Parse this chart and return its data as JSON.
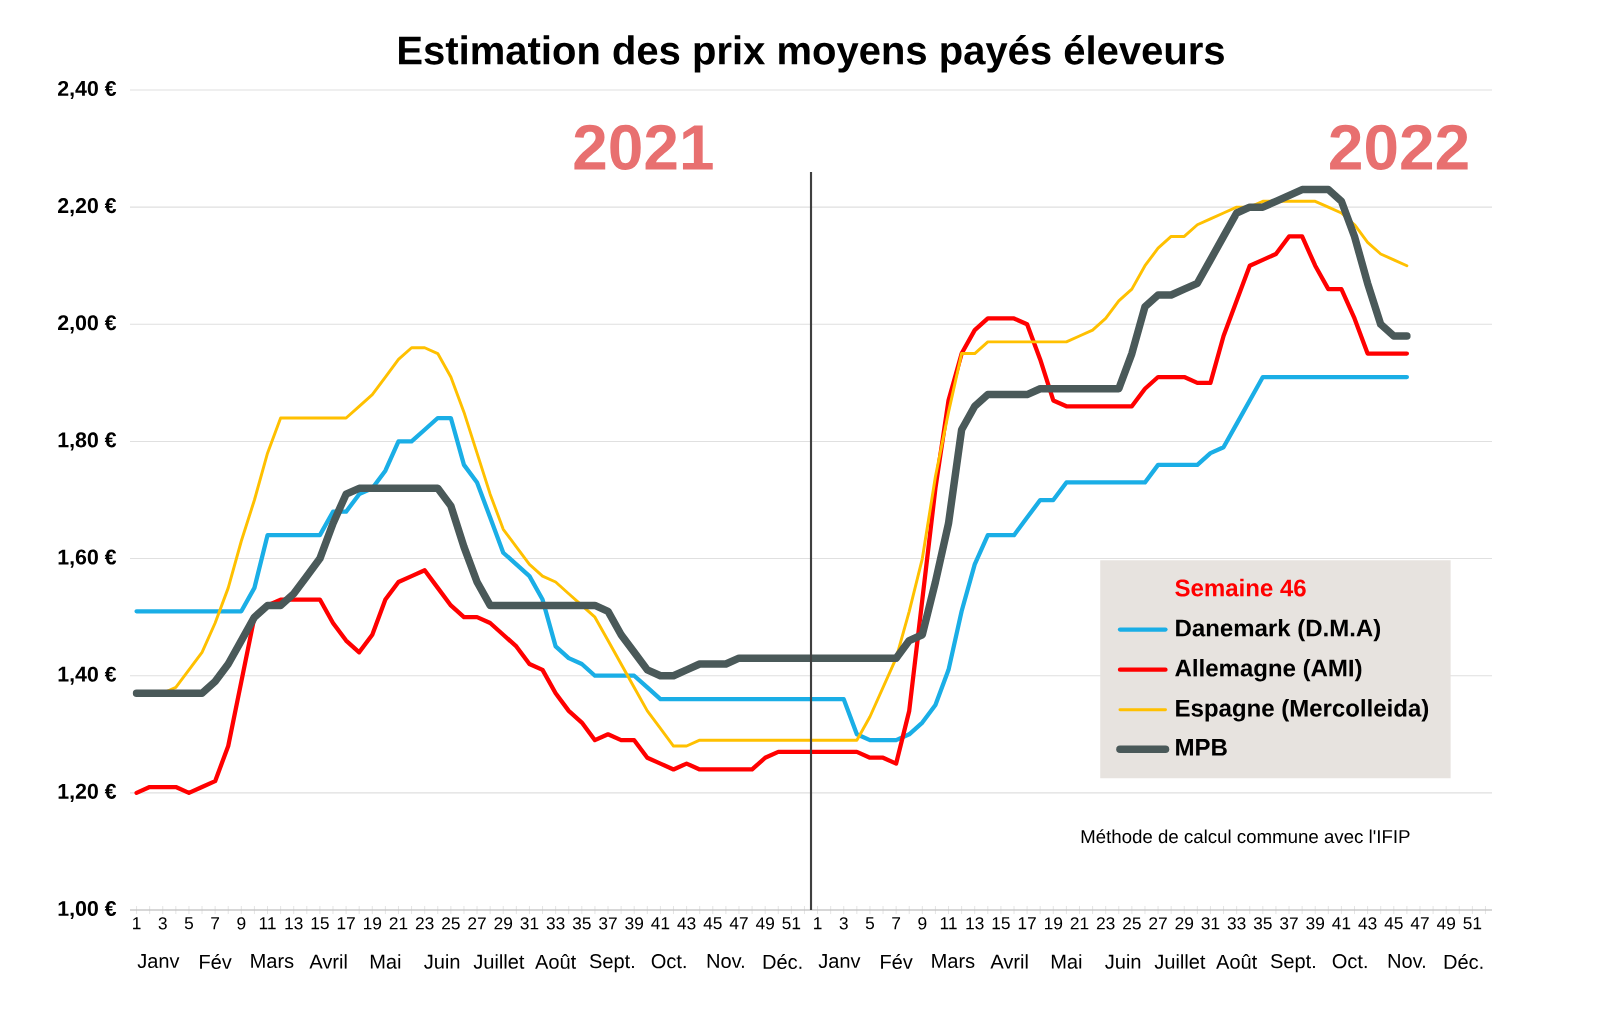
{
  "chart_data": {
    "type": "line",
    "title": "Estimation des prix moyens payés éleveurs",
    "categories": [
      "1",
      null,
      "3",
      null,
      "5",
      null,
      "7",
      null,
      "9",
      null,
      "11",
      null,
      "13",
      null,
      "15",
      null,
      "17",
      null,
      "19",
      null,
      "21",
      null,
      "23",
      null,
      "25",
      null,
      "27",
      null,
      "29",
      null,
      "31",
      null,
      "33",
      null,
      "35",
      null,
      "37",
      null,
      "39",
      null,
      "41",
      null,
      "43",
      null,
      "45",
      null,
      "47",
      null,
      "49",
      null,
      "51",
      null,
      "1",
      null,
      "3",
      null,
      "5",
      null,
      "7",
      null,
      "9",
      null,
      "11",
      null,
      "13",
      null,
      "15",
      null,
      "17",
      null,
      "19",
      null,
      "21",
      null,
      "23",
      null,
      "25",
      null,
      "27",
      null,
      "29",
      null,
      "31",
      null,
      "33",
      null,
      "35",
      null,
      "37",
      null,
      "39",
      null,
      "41",
      null,
      "43",
      null,
      "45",
      null,
      "47",
      null,
      "49",
      null,
      "51",
      null
    ],
    "series": [
      {
        "name": "Danemark (D.M.A)",
        "color": "#1aaee6",
        "values": [
          1.51,
          1.51,
          1.51,
          1.51,
          1.51,
          1.51,
          1.51,
          1.51,
          1.51,
          1.55,
          1.64,
          1.64,
          1.64,
          1.64,
          1.64,
          1.68,
          1.68,
          1.71,
          1.72,
          1.75,
          1.8,
          1.8,
          1.82,
          1.84,
          1.84,
          1.76,
          1.73,
          1.67,
          1.61,
          1.59,
          1.57,
          1.53,
          1.45,
          1.43,
          1.42,
          1.4,
          1.4,
          1.4,
          1.4,
          1.38,
          1.36,
          1.36,
          1.36,
          1.36,
          1.36,
          1.36,
          1.36,
          1.36,
          1.36,
          1.36,
          1.36,
          1.36,
          1.36,
          1.36,
          1.36,
          1.3,
          1.29,
          1.29,
          1.29,
          1.3,
          1.32,
          1.35,
          1.41,
          1.51,
          1.59,
          1.64,
          1.64,
          1.64,
          1.67,
          1.7,
          1.7,
          1.73,
          1.73,
          1.73,
          1.73,
          1.73,
          1.73,
          1.73,
          1.76,
          1.76,
          1.76,
          1.76,
          1.78,
          1.79,
          1.83,
          1.87,
          1.91,
          1.91,
          1.91,
          1.91,
          1.91,
          1.91,
          1.91,
          1.91,
          1.91,
          1.91,
          1.91,
          1.91,
          null,
          null,
          null,
          null,
          null,
          null
        ]
      },
      {
        "name": "Allemagne (AMI)",
        "color": "#ff0000",
        "values": [
          1.2,
          1.21,
          1.21,
          1.21,
          1.2,
          1.21,
          1.22,
          1.28,
          1.39,
          1.5,
          1.52,
          1.53,
          1.53,
          1.53,
          1.53,
          1.49,
          1.46,
          1.44,
          1.47,
          1.53,
          1.56,
          1.57,
          1.58,
          1.55,
          1.52,
          1.5,
          1.5,
          1.49,
          1.47,
          1.45,
          1.42,
          1.41,
          1.37,
          1.34,
          1.32,
          1.29,
          1.3,
          1.29,
          1.29,
          1.26,
          1.25,
          1.24,
          1.25,
          1.24,
          1.24,
          1.24,
          1.24,
          1.24,
          1.26,
          1.27,
          1.27,
          1.27,
          1.27,
          1.27,
          1.27,
          1.27,
          1.26,
          1.26,
          1.25,
          1.34,
          1.53,
          1.72,
          1.87,
          1.95,
          1.99,
          2.01,
          2.01,
          2.01,
          2.0,
          1.94,
          1.87,
          1.86,
          1.86,
          1.86,
          1.86,
          1.86,
          1.86,
          1.89,
          1.91,
          1.91,
          1.91,
          1.9,
          1.9,
          1.98,
          2.04,
          2.1,
          2.11,
          2.12,
          2.15,
          2.15,
          2.1,
          2.06,
          2.06,
          2.01,
          1.95,
          1.95,
          1.95,
          1.95,
          null,
          null,
          null,
          null,
          null,
          null
        ]
      },
      {
        "name": "Espagne (Mercolleida)",
        "color": "#ffc000",
        "values": [
          null,
          null,
          1.37,
          1.38,
          1.41,
          1.44,
          1.49,
          1.55,
          1.63,
          1.7,
          1.78,
          1.84,
          1.84,
          1.84,
          1.84,
          1.84,
          1.84,
          1.86,
          1.88,
          1.91,
          1.94,
          1.96,
          1.96,
          1.95,
          1.91,
          1.85,
          1.78,
          1.71,
          1.65,
          1.62,
          1.59,
          1.57,
          1.56,
          1.54,
          1.52,
          1.5,
          1.46,
          1.42,
          1.38,
          1.34,
          1.31,
          1.28,
          1.28,
          1.29,
          1.29,
          1.29,
          1.29,
          1.29,
          1.29,
          1.29,
          1.29,
          1.29,
          1.29,
          1.29,
          1.29,
          1.29,
          1.33,
          1.38,
          1.43,
          1.51,
          1.6,
          1.74,
          1.85,
          1.95,
          1.95,
          1.97,
          1.97,
          1.97,
          1.97,
          1.97,
          1.97,
          1.97,
          1.98,
          1.99,
          2.01,
          2.04,
          2.06,
          2.1,
          2.13,
          2.15,
          2.15,
          2.17,
          2.18,
          2.19,
          2.2,
          2.2,
          2.21,
          2.21,
          2.21,
          2.21,
          2.21,
          2.2,
          2.19,
          2.17,
          2.14,
          2.12,
          2.11,
          2.1,
          null,
          null,
          null,
          null,
          null,
          null
        ]
      },
      {
        "name": "MPB",
        "color": "#4a5959",
        "values": [
          1.37,
          1.37,
          1.37,
          1.37,
          1.37,
          1.37,
          1.39,
          1.42,
          1.46,
          1.5,
          1.52,
          1.52,
          1.54,
          1.57,
          1.6,
          1.66,
          1.71,
          1.72,
          1.72,
          1.72,
          1.72,
          1.72,
          1.72,
          1.72,
          1.69,
          1.62,
          1.56,
          1.52,
          1.52,
          1.52,
          1.52,
          1.52,
          1.52,
          1.52,
          1.52,
          1.52,
          1.51,
          1.47,
          1.44,
          1.41,
          1.4,
          1.4,
          1.41,
          1.42,
          1.42,
          1.42,
          1.43,
          1.43,
          1.43,
          1.43,
          1.43,
          1.43,
          1.43,
          1.43,
          1.43,
          1.43,
          1.43,
          1.43,
          1.43,
          1.46,
          1.47,
          1.56,
          1.66,
          1.82,
          1.86,
          1.88,
          1.88,
          1.88,
          1.88,
          1.89,
          1.89,
          1.89,
          1.89,
          1.89,
          1.89,
          1.89,
          1.95,
          2.03,
          2.05,
          2.05,
          2.06,
          2.07,
          2.11,
          2.15,
          2.19,
          2.2,
          2.2,
          2.21,
          2.22,
          2.23,
          2.23,
          2.23,
          2.21,
          2.15,
          2.07,
          2.0,
          1.98,
          1.98,
          null,
          null,
          null,
          null,
          null,
          null
        ]
      }
    ],
    "ylim": [
      1.0,
      2.4
    ],
    "yticks": [
      {
        "value": 1.0,
        "label": "1,00 €"
      },
      {
        "value": 1.2,
        "label": "1,20 €"
      },
      {
        "value": 1.4,
        "label": "1,40 €"
      },
      {
        "value": 1.6,
        "label": "1,60 €"
      },
      {
        "value": 1.8,
        "label": "1,80 €"
      },
      {
        "value": 2.0,
        "label": "2,00 €"
      },
      {
        "value": 2.2,
        "label": "2,20 €"
      },
      {
        "value": 2.4,
        "label": "2,40 €"
      }
    ],
    "grid": "y",
    "legend": "bottom right",
    "legend_title": "Semaine 46",
    "line_style": "solid",
    "annotations": [
      "2021",
      "2022",
      "Méthode de calcul commune avec l'IFIP",
      "Janv",
      "Fév",
      "Mars",
      "Avril",
      "Mai",
      "Juin",
      "Juillet",
      "Août",
      "Sept.",
      "Oct.",
      "Nov.",
      "Déc.",
      "Janv",
      "Fév",
      "Mars",
      "Avril",
      "Mai",
      "Juin",
      "Juillet",
      "Août",
      "Sept.",
      "Oct.",
      "Nov.",
      "Déc."
    ]
  }
}
